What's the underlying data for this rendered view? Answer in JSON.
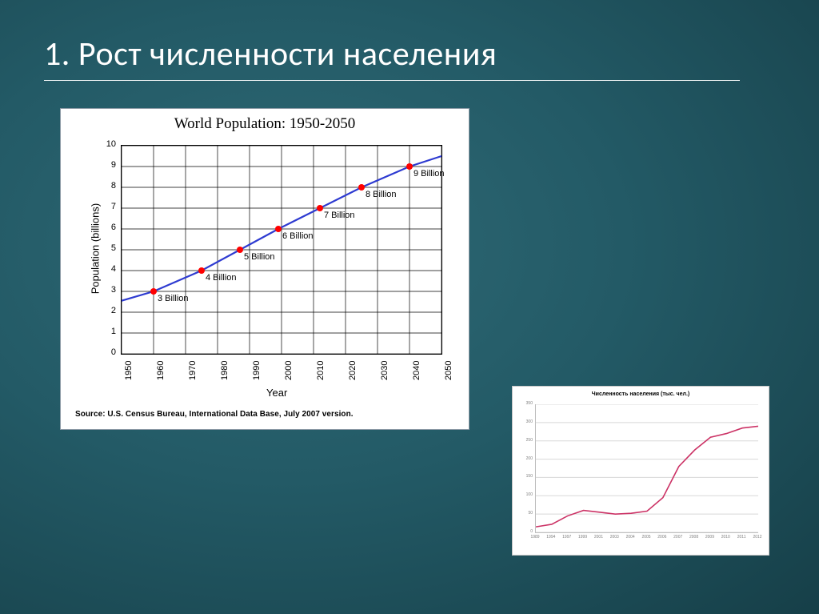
{
  "slide": {
    "title": "1. Рост численности населения",
    "background_center": "#2f6a76",
    "background_edge": "#163f48",
    "title_color": "#ffffff",
    "title_fontsize": 42
  },
  "chart1": {
    "type": "line-with-markers",
    "title": "World Population: 1950-2050",
    "title_fontsize": 19,
    "xlabel": "Year",
    "ylabel": "Population (billions)",
    "label_fontsize": 13,
    "xlim": [
      1950,
      2050
    ],
    "ylim": [
      0,
      10
    ],
    "xtick_step": 10,
    "ytick_step": 1,
    "xticks": [
      "1950",
      "1960",
      "1970",
      "1980",
      "1990",
      "2000",
      "2010",
      "2020",
      "2030",
      "2040",
      "2050"
    ],
    "yticks": [
      "0",
      "1",
      "2",
      "3",
      "4",
      "5",
      "6",
      "7",
      "8",
      "9",
      "10"
    ],
    "xtick_fontsize": 11,
    "ytick_fontsize": 11,
    "line_color": "#2e3bd1",
    "line_width": 2.2,
    "marker_color": "#ff0000",
    "marker_size": 4,
    "grid_color": "#000000",
    "background_color": "#ffffff",
    "line_points": [
      [
        1950,
        2.55
      ],
      [
        1960,
        3.0
      ],
      [
        1975,
        4.0
      ],
      [
        1987,
        5.0
      ],
      [
        1999,
        6.0
      ],
      [
        2012,
        7.0
      ],
      [
        2025,
        8.0
      ],
      [
        2040,
        9.0
      ],
      [
        2050,
        9.5
      ]
    ],
    "markers": [
      {
        "x": 1960,
        "y": 3.0,
        "label": "3 Billion"
      },
      {
        "x": 1975,
        "y": 4.0,
        "label": "4 Billion"
      },
      {
        "x": 1987,
        "y": 5.0,
        "label": "5 Billion"
      },
      {
        "x": 1999,
        "y": 6.0,
        "label": "6 Billion"
      },
      {
        "x": 2012,
        "y": 7.0,
        "label": "7 Billion"
      },
      {
        "x": 2025,
        "y": 8.0,
        "label": "8 Billion"
      },
      {
        "x": 2040,
        "y": 9.0,
        "label": "9 Billion"
      }
    ],
    "point_label_fontsize": 11,
    "source": "Source: U.S. Census Bureau, International Data Base, July 2007 version."
  },
  "chart2": {
    "type": "line",
    "title": "Численность населения (тыс. чел.)",
    "title_fontsize": 7,
    "xlim_index": [
      0,
      14
    ],
    "ylim": [
      0,
      350
    ],
    "ytick_step": 50,
    "yticks": [
      "0",
      "50",
      "100",
      "150",
      "200",
      "250",
      "300",
      "350"
    ],
    "xticks": [
      "1989",
      "1994",
      "1997",
      "1999",
      "2001",
      "2003",
      "2004",
      "2005",
      "2006",
      "2007",
      "2008",
      "2009",
      "2010",
      "2011",
      "2012"
    ],
    "xtick_fontsize": 5,
    "ytick_fontsize": 5,
    "line_color": "#cc3366",
    "line_width": 1.6,
    "grid_color": "#d8d8d8",
    "background_color": "#ffffff",
    "values": [
      15,
      22,
      45,
      60,
      55,
      50,
      52,
      58,
      95,
      180,
      225,
      260,
      270,
      285,
      290
    ]
  }
}
